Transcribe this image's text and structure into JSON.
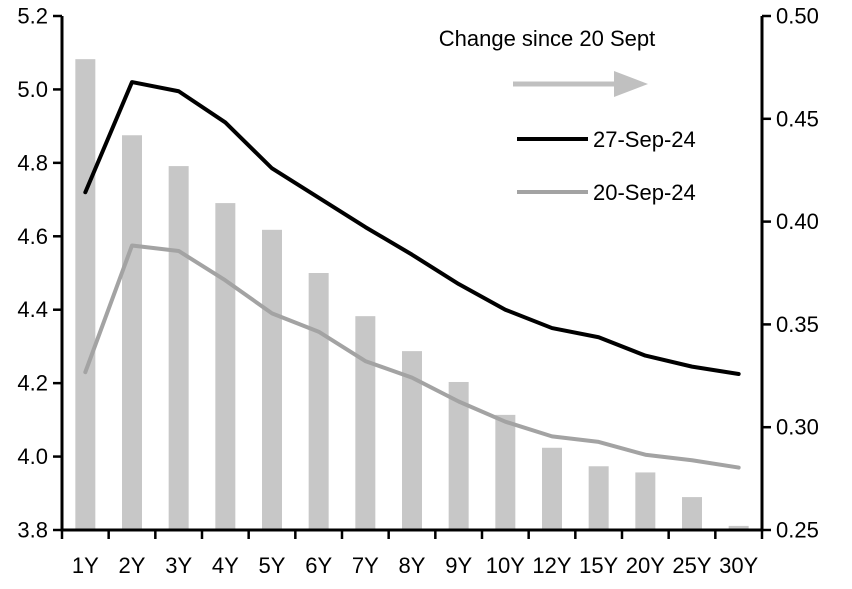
{
  "legend": {
    "title": "Change since 20 Sept",
    "items": [
      {
        "label": "27-Sep-24",
        "color": "#000000"
      },
      {
        "label": "20-Sep-24",
        "color": "#a3a3a3"
      }
    ],
    "arrow_color": "#c0c0c0"
  },
  "chart_data": {
    "type": "combo-bar-line",
    "title": "",
    "categories": [
      "1Y",
      "2Y",
      "3Y",
      "4Y",
      "5Y",
      "6Y",
      "7Y",
      "8Y",
      "9Y",
      "10Y",
      "12Y",
      "15Y",
      "20Y",
      "25Y",
      "30Y"
    ],
    "series": [
      {
        "name": "Change since 20 Sept",
        "type": "bar",
        "axis": "right",
        "color": "#c7c7c7",
        "values": [
          0.479,
          0.442,
          0.427,
          0.409,
          0.396,
          0.375,
          0.354,
          0.337,
          0.322,
          0.306,
          0.29,
          0.281,
          0.278,
          0.266,
          0.252
        ]
      },
      {
        "name": "27-Sep-24",
        "type": "line",
        "axis": "left",
        "color": "#000000",
        "values": [
          4.72,
          5.02,
          4.995,
          4.91,
          4.785,
          4.705,
          4.625,
          4.55,
          4.47,
          4.4,
          4.35,
          4.325,
          4.275,
          4.245,
          4.225
        ]
      },
      {
        "name": "20-Sep-24",
        "type": "line",
        "axis": "left",
        "color": "#a3a3a3",
        "values": [
          4.23,
          4.575,
          4.56,
          4.48,
          4.39,
          4.34,
          4.26,
          4.215,
          4.15,
          4.095,
          4.055,
          4.04,
          4.005,
          3.99,
          3.97
        ]
      }
    ],
    "left_axis": {
      "min": 3.8,
      "max": 5.2,
      "tick_step": 0.2,
      "tick_labels": [
        "5.2",
        "5.0",
        "4.8",
        "4.6",
        "4.4",
        "4.2",
        "4.0",
        "3.8"
      ]
    },
    "right_axis": {
      "min": 0.25,
      "max": 0.5,
      "tick_step": 0.05,
      "tick_labels": [
        "0.50",
        "0.45",
        "0.40",
        "0.35",
        "0.30",
        "0.25"
      ]
    },
    "grid": false,
    "legend_position": "inside-top-right"
  }
}
